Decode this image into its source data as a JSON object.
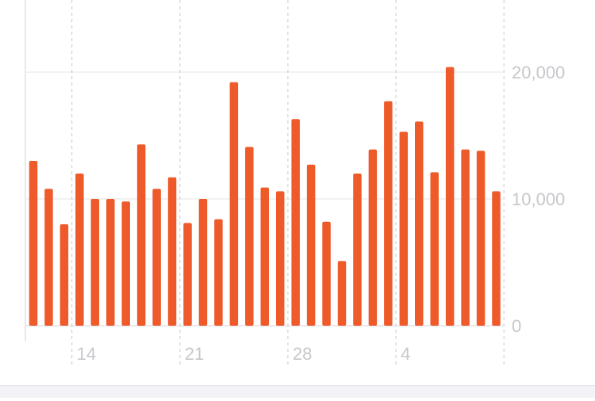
{
  "chart_data": {
    "type": "bar",
    "title": "",
    "xlabel": "",
    "ylabel": "",
    "ylim": [
      0,
      25000
    ],
    "y_ticks": [
      0,
      10000,
      20000
    ],
    "y_tick_labels": [
      "0",
      "10,000",
      "20,000"
    ],
    "x_tick_labels": [
      "14",
      "21",
      "28",
      "4"
    ],
    "y_axis_position": "right",
    "grid": true,
    "bar_color": "#ef5a2a",
    "gridline_color": "#ededed",
    "vertical_gridline_color": "#d2d2d7",
    "values": [
      13000,
      10800,
      8000,
      12000,
      10000,
      10000,
      9800,
      14300,
      10800,
      11700,
      8100,
      10000,
      8400,
      19200,
      14100,
      10900,
      10600,
      16300,
      12700,
      8200,
      5100,
      12000,
      13900,
      17700,
      15300,
      16100,
      12100,
      20400,
      13900,
      13800,
      10600
    ]
  }
}
